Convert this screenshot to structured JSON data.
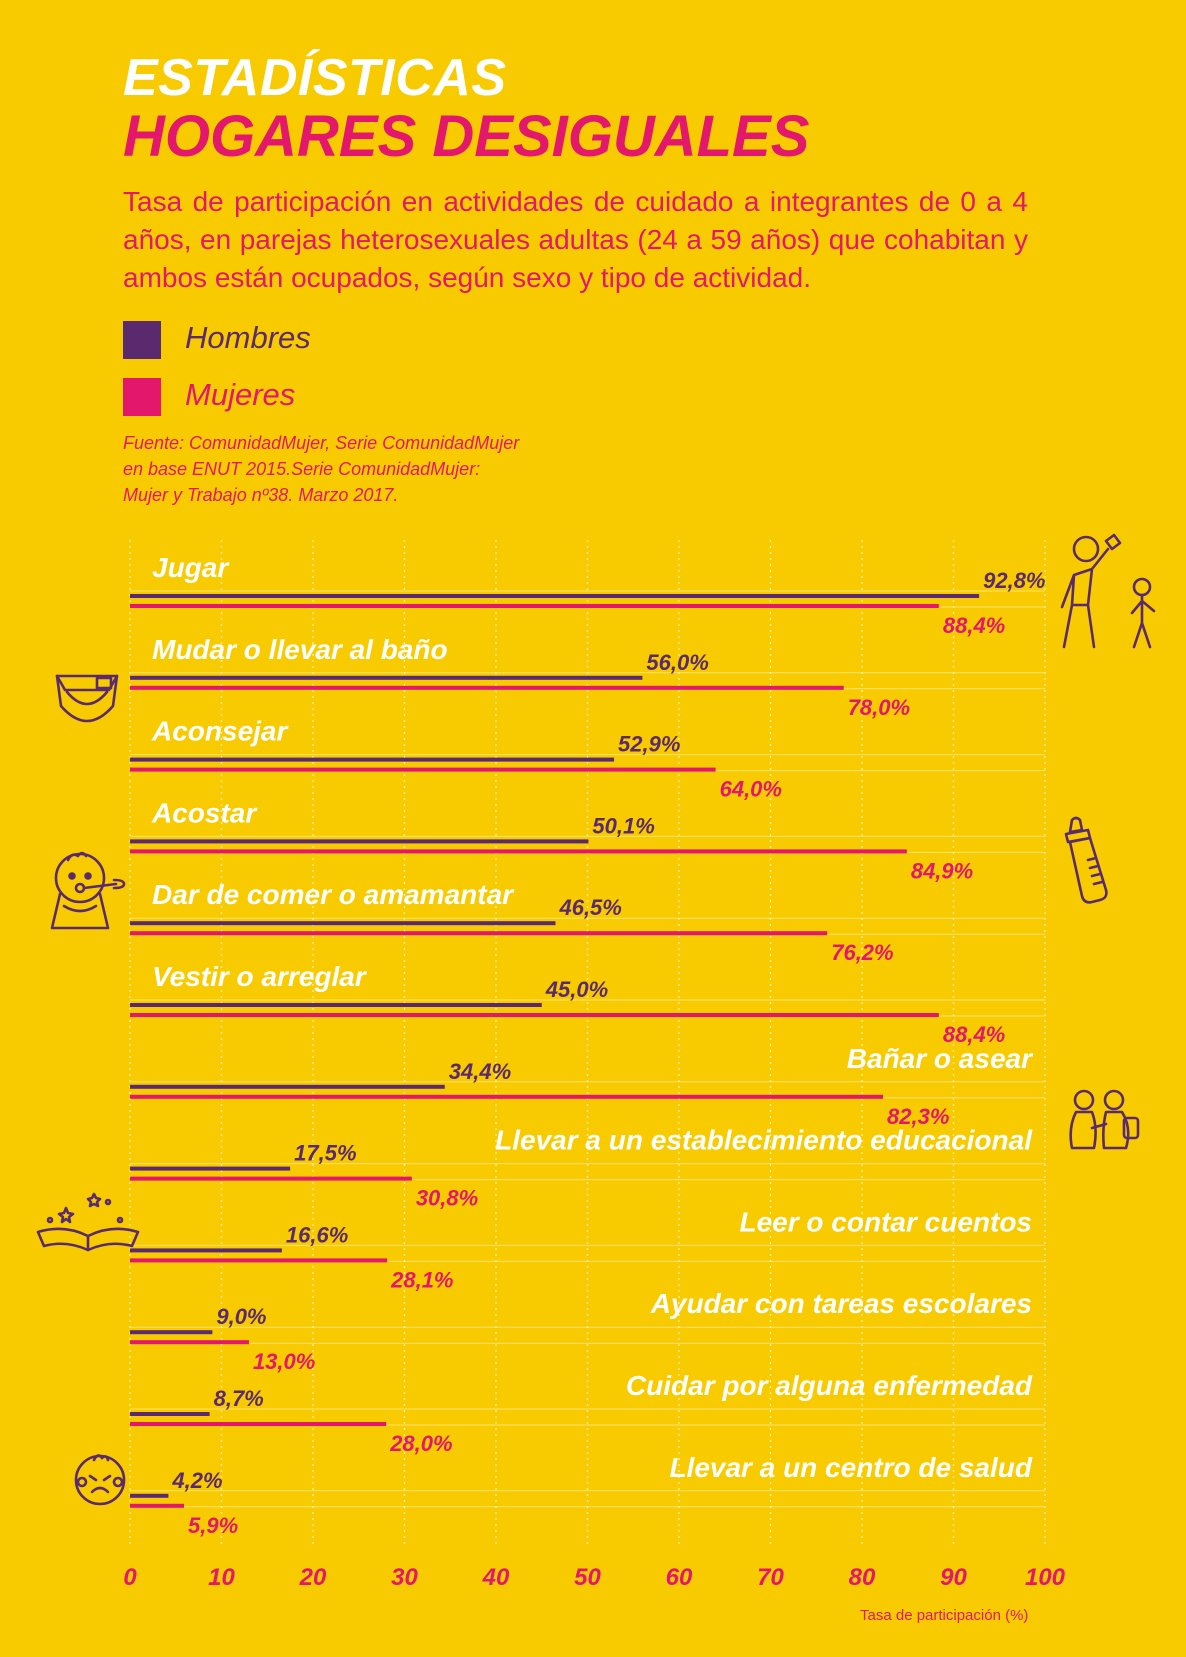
{
  "header": {
    "title_line1": "ESTADÍSTICAS",
    "title_line2": "HOGARES DESIGUALES",
    "subtitle": "Tasa de participación en actividades de cuidado a integrantes de 0 a 4 años, en parejas heterosexuales adultas (24 a 59 años) que cohabitan y ambos están ocupados, según sexo y tipo de actividad."
  },
  "legend": [
    {
      "label": "Hombres",
      "color": "#5B2A6E"
    },
    {
      "label": "Mujeres",
      "color": "#E3176B"
    }
  ],
  "source": {
    "line1": "Fuente: ComunidadMujer, Serie ComunidadMujer",
    "line2": "en base ENUT 2015.Serie ComunidadMujer:",
    "line3": "Mujer y Trabajo nº38. Marzo 2017."
  },
  "chart_data": {
    "type": "bar",
    "orientation": "horizontal",
    "categories": [
      "Jugar",
      "Mudar o llevar al baño",
      "Aconsejar",
      "Acostar",
      "Dar de comer o amamantar",
      "Vestir o arreglar",
      "Bañar o asear",
      "Llevar a un establecimiento educacional",
      "Leer o contar cuentos",
      "Ayudar con tareas escolares",
      "Cuidar por alguna enfermedad",
      "Llevar a un centro de salud"
    ],
    "series": [
      {
        "name": "Hombres",
        "color": "#5B2A6E",
        "values": [
          92.8,
          56.0,
          52.9,
          50.1,
          46.5,
          45.0,
          34.4,
          17.5,
          16.6,
          9.0,
          8.7,
          4.2
        ],
        "labels": [
          "92,8%",
          "56,0%",
          "52,9%",
          "50,1%",
          "46,5%",
          "45,0%",
          "34,4%",
          "17,5%",
          "16,6%",
          "9,0%",
          "8,7%",
          "4,2%"
        ]
      },
      {
        "name": "Mujeres",
        "color": "#E3176B",
        "values": [
          88.4,
          78.0,
          64.0,
          84.9,
          76.2,
          88.4,
          82.3,
          30.8,
          28.1,
          13.0,
          28.0,
          5.9
        ],
        "labels": [
          "88,4%",
          "78,0%",
          "64,0%",
          "84,9%",
          "76,2%",
          "88,4%",
          "82,3%",
          "30,8%",
          "28,1%",
          "13,0%",
          "28,0%",
          "5,9%"
        ]
      }
    ],
    "xlim": [
      0,
      100
    ],
    "xticks": [
      "0",
      "10",
      "20",
      "30",
      "40",
      "50",
      "60",
      "70",
      "80",
      "90",
      "100"
    ],
    "xlabel": "Tasa de participación (%)",
    "grid": true,
    "legend_position": "top-left"
  },
  "icons": [
    "playing-parent-child-icon",
    "diaper-icon",
    "baby-bottle-icon",
    "baby-eating-icon",
    "school-children-icon",
    "storybook-icon",
    "sick-baby-icon"
  ]
}
